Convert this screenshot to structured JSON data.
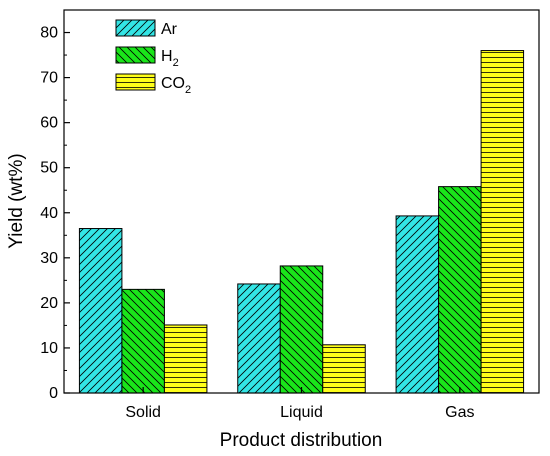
{
  "chart_data": {
    "type": "bar",
    "title": "",
    "xlabel": "Product distribution",
    "ylabel": "Yield (wt%)",
    "ylim": [
      0,
      85
    ],
    "yticks": [
      0,
      10,
      20,
      30,
      40,
      50,
      60,
      70,
      80
    ],
    "categories": [
      "Solid",
      "Liquid",
      "Gas"
    ],
    "series": [
      {
        "name": "Ar",
        "name_main": "Ar",
        "name_sub": "",
        "color": "#33E5E5",
        "hatch": "diag-up",
        "values": [
          36.5,
          24.2,
          39.3
        ]
      },
      {
        "name": "H2",
        "name_main": "H",
        "name_sub": "2",
        "color": "#1AE51A",
        "hatch": "diag-down",
        "values": [
          23.0,
          28.2,
          45.8
        ]
      },
      {
        "name": "CO2",
        "name_main": "CO",
        "name_sub": "2",
        "color": "#FFFF1A",
        "hatch": "horizontal",
        "values": [
          15.1,
          10.7,
          76.0
        ]
      }
    ],
    "legend_position": "top-left",
    "grid": false
  }
}
